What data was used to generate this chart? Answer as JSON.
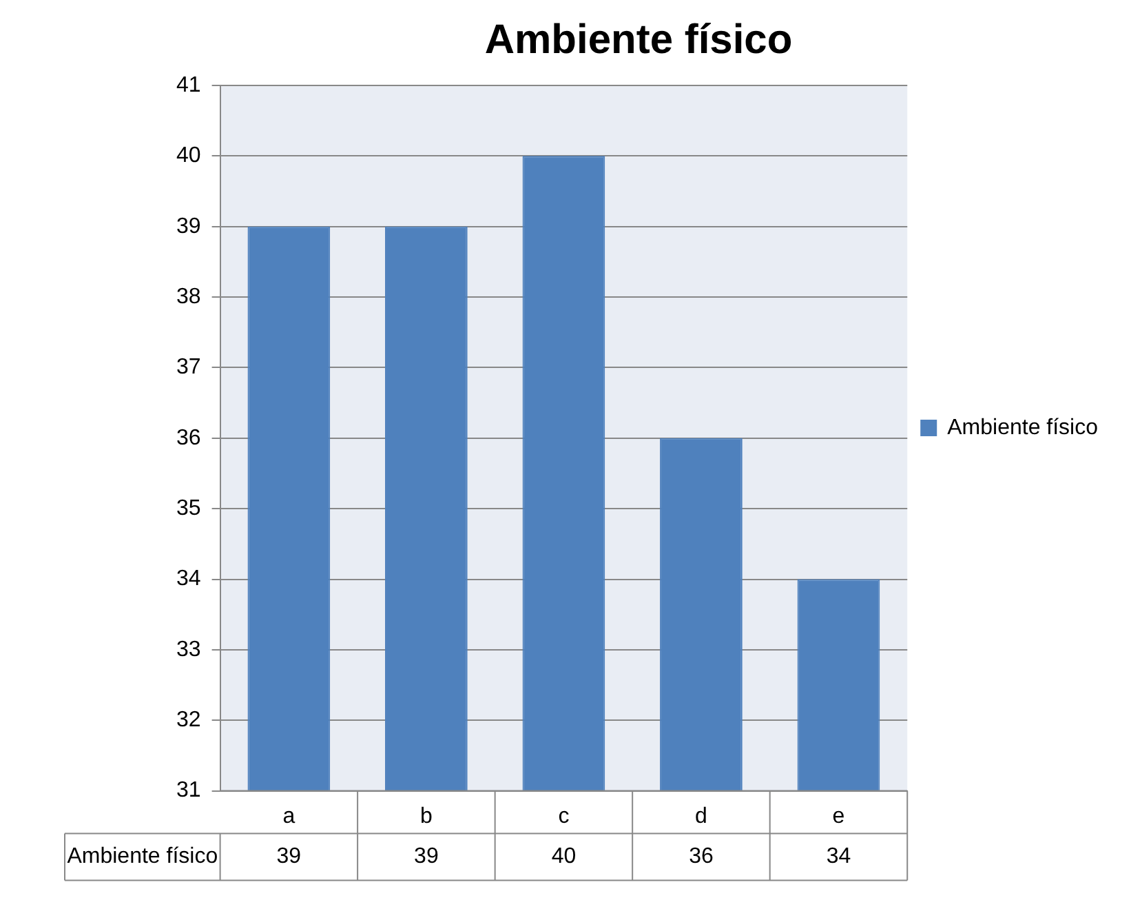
{
  "chart_data": {
    "type": "bar",
    "title": "Ambiente físico",
    "categories": [
      "a",
      "b",
      "c",
      "d",
      "e"
    ],
    "series": [
      {
        "name": "Ambiente físico",
        "color": "#4f81bd",
        "values": [
          39,
          39,
          40,
          36,
          34
        ]
      }
    ],
    "ylim": [
      31,
      41
    ],
    "yticks": [
      31,
      32,
      33,
      34,
      35,
      36,
      37,
      38,
      39,
      40,
      41
    ],
    "grid": "y",
    "legend": "right",
    "data_labels": true
  }
}
